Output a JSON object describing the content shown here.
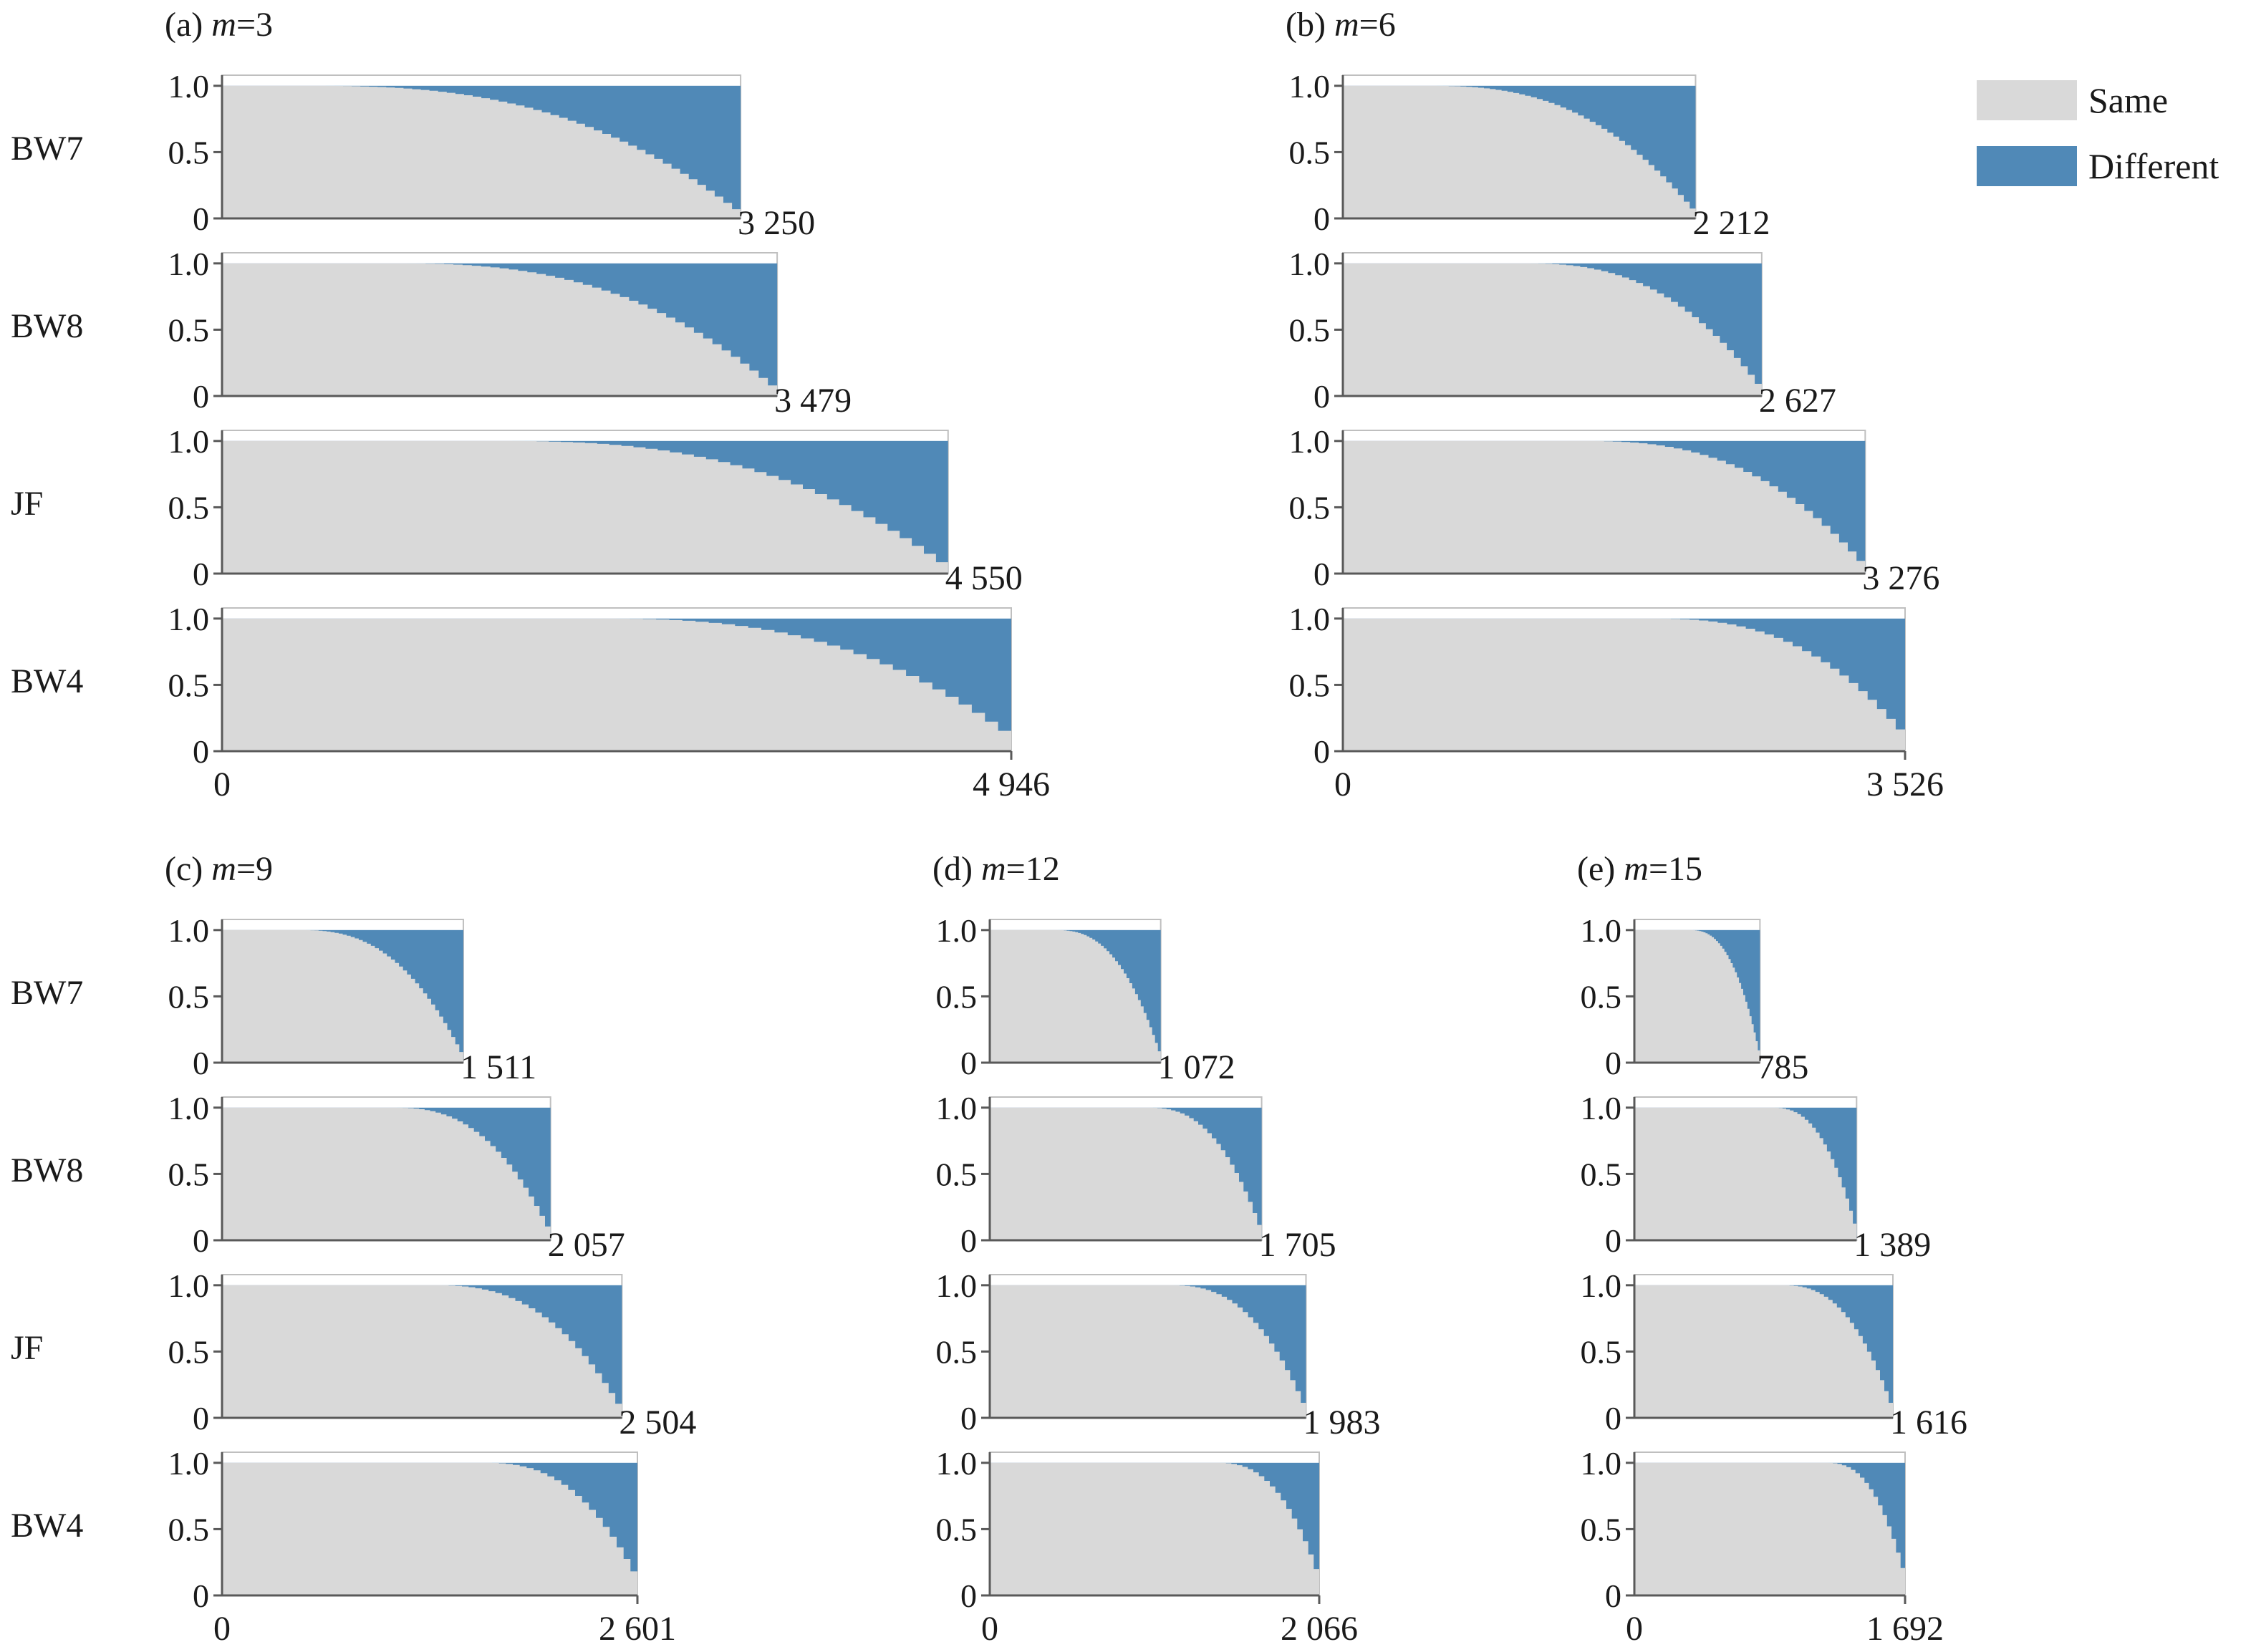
{
  "legend": {
    "same_label": "Same",
    "different_label": "Different",
    "same_color": "#d9d9d9",
    "different_color": "#5089b7"
  },
  "colors": {
    "axis": "#595959",
    "frame": "#bfbfbf",
    "text": "#1a1a1a"
  },
  "chart_data": [
    {
      "type": "area",
      "panel": "(a)",
      "m_label": "m",
      "m_value": "=3",
      "row_labels": [
        "BW7",
        "BW8",
        "JF",
        "BW4"
      ],
      "y_ticks": [
        "1.0",
        "0.5",
        "0"
      ],
      "ylim": [
        0,
        1.08
      ],
      "x_start_label": "0",
      "x_end_label": "4 946",
      "series": [
        {
          "name": "BW7",
          "end_label": "3 250",
          "n": 3250,
          "different_start": 0.16,
          "decay": 0.58
        },
        {
          "name": "BW8",
          "end_label": "3 479",
          "n": 3479,
          "different_start": 0.3,
          "decay": 0.58
        },
        {
          "name": "JF",
          "end_label": "4 550",
          "n": 4550,
          "different_start": 0.37,
          "decay": 0.6
        },
        {
          "name": "BW4",
          "end_label": "",
          "n": 4946,
          "different_start": 0.47,
          "decay": 0.9
        }
      ]
    },
    {
      "type": "area",
      "panel": "(b)",
      "m_label": "m",
      "m_value": "=6",
      "row_labels": [
        "",
        "",
        "",
        ""
      ],
      "y_ticks": [
        "1.0",
        "0.5",
        "0"
      ],
      "ylim": [
        0,
        1.08
      ],
      "x_start_label": "0",
      "x_end_label": "3 526",
      "series": [
        {
          "name": "BW7",
          "end_label": "2 212",
          "n": 2212,
          "different_start": 0.23,
          "decay": 0.6
        },
        {
          "name": "BW8",
          "end_label": "2 627",
          "n": 2627,
          "different_start": 0.42,
          "decay": 0.6
        },
        {
          "name": "JF",
          "end_label": "3 276",
          "n": 3276,
          "different_start": 0.45,
          "decay": 0.62
        },
        {
          "name": "BW4",
          "end_label": "",
          "n": 3526,
          "different_start": 0.54,
          "decay": 0.9
        }
      ]
    },
    {
      "type": "area",
      "panel": "(c)",
      "m_label": "m",
      "m_value": "=9",
      "row_labels": [
        "BW7",
        "BW8",
        "JF",
        "BW4"
      ],
      "y_ticks": [
        "1.0",
        "0.5",
        "0"
      ],
      "ylim": [
        0,
        1.08
      ],
      "x_start_label": "0",
      "x_end_label": "2 601",
      "series": [
        {
          "name": "BW7",
          "end_label": "1 511",
          "n": 1511,
          "different_start": 0.31,
          "decay": 0.6
        },
        {
          "name": "BW8",
          "end_label": "2 057",
          "n": 2057,
          "different_start": 0.51,
          "decay": 0.6
        },
        {
          "name": "JF",
          "end_label": "2 504",
          "n": 2504,
          "different_start": 0.52,
          "decay": 0.62
        },
        {
          "name": "BW4",
          "end_label": "",
          "n": 2601,
          "different_start": 0.62,
          "decay": 0.9
        }
      ]
    },
    {
      "type": "area",
      "panel": "(d)",
      "m_label": "m",
      "m_value": "=12",
      "row_labels": [
        "",
        "",
        "",
        ""
      ],
      "y_ticks": [
        "1.0",
        "0.5",
        "0"
      ],
      "ylim": [
        0,
        1.08
      ],
      "x_start_label": "0",
      "x_end_label": "2 066",
      "series": [
        {
          "name": "BW7",
          "end_label": "1 072",
          "n": 1072,
          "different_start": 0.37,
          "decay": 0.6
        },
        {
          "name": "BW8",
          "end_label": "1 705",
          "n": 1705,
          "different_start": 0.57,
          "decay": 0.62
        },
        {
          "name": "JF",
          "end_label": "1 983",
          "n": 1983,
          "different_start": 0.56,
          "decay": 0.62
        },
        {
          "name": "BW4",
          "end_label": "",
          "n": 2066,
          "different_start": 0.68,
          "decay": 0.9
        }
      ]
    },
    {
      "type": "area",
      "panel": "(e)",
      "m_label": "m",
      "m_value": "=15",
      "row_labels": [
        "",
        "",
        "",
        ""
      ],
      "y_ticks": [
        "1.0",
        "0.5",
        "0"
      ],
      "ylim": [
        0,
        1.08
      ],
      "x_start_label": "0",
      "x_end_label": "1 692",
      "series": [
        {
          "name": "BW7",
          "end_label": "785",
          "n": 785,
          "different_start": 0.43,
          "decay": 0.6
        },
        {
          "name": "BW8",
          "end_label": "1 389",
          "n": 1389,
          "different_start": 0.61,
          "decay": 0.62
        },
        {
          "name": "JF",
          "end_label": "1 616",
          "n": 1616,
          "different_start": 0.56,
          "decay": 0.62
        },
        {
          "name": "BW4",
          "end_label": "",
          "n": 1692,
          "different_start": 0.7,
          "decay": 0.9
        }
      ]
    }
  ]
}
